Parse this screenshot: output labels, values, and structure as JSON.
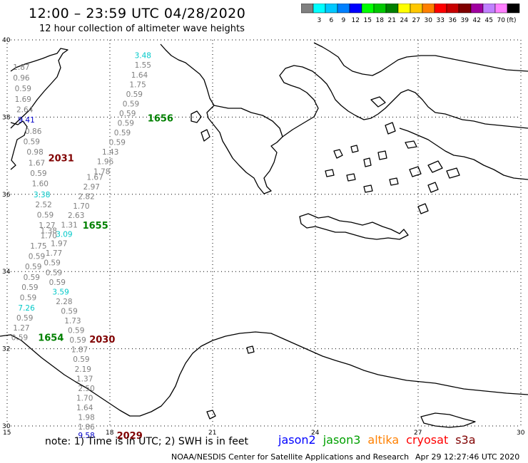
{
  "title": "12:00 – 23:59 UTC 04/28/2020",
  "subtitle": "12 hour collection of altimeter wave heights",
  "legend": {
    "unit_label": "(ft)",
    "bins": [
      {
        "label": "",
        "color": "#808080"
      },
      {
        "label": "3",
        "color": "#00ffff"
      },
      {
        "label": "6",
        "color": "#00c8ff"
      },
      {
        "label": "9",
        "color": "#0080ff"
      },
      {
        "label": "12",
        "color": "#0000ff"
      },
      {
        "label": "15",
        "color": "#00ff00"
      },
      {
        "label": "18",
        "color": "#00c800"
      },
      {
        "label": "21",
        "color": "#008000"
      },
      {
        "label": "24",
        "color": "#ffff00"
      },
      {
        "label": "27",
        "color": "#ffc800"
      },
      {
        "label": "30",
        "color": "#ff8000"
      },
      {
        "label": "33",
        "color": "#ff0000"
      },
      {
        "label": "36",
        "color": "#c80000"
      },
      {
        "label": "39",
        "color": "#800000"
      },
      {
        "label": "42",
        "color": "#a000a0"
      },
      {
        "label": "45",
        "color": "#c080ff"
      },
      {
        "label": "70",
        "color": "#ff80ff"
      },
      {
        "label": "",
        "color": "#000000"
      }
    ]
  },
  "lat_labels": [
    {
      "value": 40,
      "label": "40"
    },
    {
      "value": 38,
      "label": "38"
    },
    {
      "value": 36,
      "label": "36"
    },
    {
      "value": 34,
      "label": "34"
    },
    {
      "value": 32,
      "label": "32"
    },
    {
      "value": 30,
      "label": "30"
    }
  ],
  "lon_labels": [
    {
      "value": 15,
      "label": "15"
    },
    {
      "value": 18,
      "label": "18"
    },
    {
      "value": 21,
      "label": "21"
    },
    {
      "value": 24,
      "label": "24"
    },
    {
      "value": 27,
      "label": "27"
    },
    {
      "value": 30,
      "label": "30"
    }
  ],
  "measurements": [
    {
      "lon": 15.4,
      "lat": 39.3,
      "text": "1.87",
      "color": "#808080"
    },
    {
      "lon": 15.4,
      "lat": 39.02,
      "text": "0.96",
      "color": "#808080"
    },
    {
      "lon": 15.45,
      "lat": 38.75,
      "text": "0.59",
      "color": "#808080"
    },
    {
      "lon": 15.45,
      "lat": 38.47,
      "text": "1.69",
      "color": "#808080"
    },
    {
      "lon": 15.5,
      "lat": 38.2,
      "text": "2.64",
      "color": "#808080"
    },
    {
      "lon": 15.55,
      "lat": 37.93,
      "text": "9.41",
      "color": "#0000c8"
    },
    {
      "lon": 15.75,
      "lat": 37.64,
      "text": "0.86",
      "color": "#808080"
    },
    {
      "lon": 15.7,
      "lat": 37.37,
      "text": "0.59",
      "color": "#808080"
    },
    {
      "lon": 15.8,
      "lat": 37.1,
      "text": "0.98",
      "color": "#808080"
    },
    {
      "lon": 15.85,
      "lat": 36.82,
      "text": "1.67",
      "color": "#808080"
    },
    {
      "lon": 15.9,
      "lat": 36.55,
      "text": "0.59",
      "color": "#808080"
    },
    {
      "lon": 15.95,
      "lat": 36.28,
      "text": "1.60",
      "color": "#808080"
    },
    {
      "lon": 16.0,
      "lat": 36.0,
      "text": "3.38",
      "color": "#00c8c8"
    },
    {
      "lon": 16.05,
      "lat": 35.74,
      "text": "2.52",
      "color": "#808080"
    },
    {
      "lon": 16.1,
      "lat": 35.47,
      "text": "0.59",
      "color": "#808080"
    },
    {
      "lon": 16.15,
      "lat": 35.2,
      "text": "1.27",
      "color": "#808080"
    },
    {
      "lon": 16.2,
      "lat": 35.06,
      "text": "1.38",
      "color": "#808080"
    },
    {
      "lon": 16.2,
      "lat": 34.94,
      "text": "1.70",
      "color": "#808080"
    },
    {
      "lon": 15.9,
      "lat": 34.67,
      "text": "1.75",
      "color": "#808080"
    },
    {
      "lon": 15.85,
      "lat": 34.4,
      "text": "0.59",
      "color": "#808080"
    },
    {
      "lon": 15.75,
      "lat": 34.13,
      "text": "0.59",
      "color": "#808080"
    },
    {
      "lon": 15.7,
      "lat": 33.86,
      "text": "0.59",
      "color": "#808080"
    },
    {
      "lon": 15.65,
      "lat": 33.6,
      "text": "0.59",
      "color": "#808080"
    },
    {
      "lon": 15.6,
      "lat": 33.33,
      "text": "0.59",
      "color": "#808080"
    },
    {
      "lon": 15.55,
      "lat": 33.06,
      "text": "7.26",
      "color": "#00c8c8"
    },
    {
      "lon": 15.5,
      "lat": 32.8,
      "text": "0.59",
      "color": "#808080"
    },
    {
      "lon": 15.4,
      "lat": 32.55,
      "text": "1.27",
      "color": "#808080"
    },
    {
      "lon": 15.35,
      "lat": 32.3,
      "text": "0.59",
      "color": "#808080"
    },
    {
      "lon": 18.95,
      "lat": 39.6,
      "text": "3.48",
      "color": "#00c8c8"
    },
    {
      "lon": 18.95,
      "lat": 39.35,
      "text": "1.55",
      "color": "#808080"
    },
    {
      "lon": 18.85,
      "lat": 39.1,
      "text": "1.64",
      "color": "#808080"
    },
    {
      "lon": 18.8,
      "lat": 38.85,
      "text": "1.75",
      "color": "#808080"
    },
    {
      "lon": 18.7,
      "lat": 38.6,
      "text": "0.59",
      "color": "#808080"
    },
    {
      "lon": 18.6,
      "lat": 38.35,
      "text": "0.59",
      "color": "#808080"
    },
    {
      "lon": 18.5,
      "lat": 38.1,
      "text": "0.59",
      "color": "#808080"
    },
    {
      "lon": 18.45,
      "lat": 37.85,
      "text": "0.59",
      "color": "#808080"
    },
    {
      "lon": 18.35,
      "lat": 37.6,
      "text": "0.59",
      "color": "#808080"
    },
    {
      "lon": 18.2,
      "lat": 37.35,
      "text": "0.59",
      "color": "#808080"
    },
    {
      "lon": 18.0,
      "lat": 37.1,
      "text": "1.43",
      "color": "#808080"
    },
    {
      "lon": 17.85,
      "lat": 36.85,
      "text": "1.96",
      "color": "#808080"
    },
    {
      "lon": 17.75,
      "lat": 36.6,
      "text": "1.78",
      "color": "#808080"
    },
    {
      "lon": 17.55,
      "lat": 36.45,
      "text": "1.67",
      "color": "#808080"
    },
    {
      "lon": 17.45,
      "lat": 36.2,
      "text": "2.97",
      "color": "#808080"
    },
    {
      "lon": 17.3,
      "lat": 35.95,
      "text": "2.82",
      "color": "#808080"
    },
    {
      "lon": 17.15,
      "lat": 35.7,
      "text": "1.70",
      "color": "#808080"
    },
    {
      "lon": 17.0,
      "lat": 35.46,
      "text": "2.63",
      "color": "#808080"
    },
    {
      "lon": 16.8,
      "lat": 35.21,
      "text": "1.31",
      "color": "#808080"
    },
    {
      "lon": 16.65,
      "lat": 34.97,
      "text": "3.09",
      "color": "#00c8c8"
    },
    {
      "lon": 16.5,
      "lat": 34.73,
      "text": "1.97",
      "color": "#808080"
    },
    {
      "lon": 16.35,
      "lat": 34.48,
      "text": "1.77",
      "color": "#808080"
    },
    {
      "lon": 16.3,
      "lat": 34.23,
      "text": "0.59",
      "color": "#808080"
    },
    {
      "lon": 16.35,
      "lat": 33.98,
      "text": "0.59",
      "color": "#808080"
    },
    {
      "lon": 16.45,
      "lat": 33.73,
      "text": "0.59",
      "color": "#808080"
    },
    {
      "lon": 16.55,
      "lat": 33.48,
      "text": "3.59",
      "color": "#00c8c8"
    },
    {
      "lon": 16.65,
      "lat": 33.23,
      "text": "2.28",
      "color": "#808080"
    },
    {
      "lon": 16.8,
      "lat": 32.98,
      "text": "0.59",
      "color": "#808080"
    },
    {
      "lon": 16.9,
      "lat": 32.73,
      "text": "1.73",
      "color": "#808080"
    },
    {
      "lon": 17.0,
      "lat": 32.48,
      "text": "0.59",
      "color": "#808080"
    },
    {
      "lon": 17.05,
      "lat": 32.23,
      "text": "0.59",
      "color": "#808080"
    },
    {
      "lon": 17.1,
      "lat": 31.98,
      "text": "1.87",
      "color": "#808080"
    },
    {
      "lon": 17.15,
      "lat": 31.73,
      "text": "0.59",
      "color": "#808080"
    },
    {
      "lon": 17.2,
      "lat": 31.48,
      "text": "2.19",
      "color": "#808080"
    },
    {
      "lon": 17.25,
      "lat": 31.23,
      "text": "1.37",
      "color": "#808080"
    },
    {
      "lon": 17.3,
      "lat": 30.98,
      "text": "2.50",
      "color": "#808080"
    },
    {
      "lon": 17.25,
      "lat": 30.73,
      "text": "1.70",
      "color": "#808080"
    },
    {
      "lon": 17.25,
      "lat": 30.48,
      "text": "1.64",
      "color": "#808080"
    },
    {
      "lon": 17.3,
      "lat": 30.23,
      "text": "1.98",
      "color": "#808080"
    },
    {
      "lon": 17.3,
      "lat": 29.98,
      "text": "1.86",
      "color": "#808080"
    },
    {
      "lon": 17.3,
      "lat": 29.76,
      "text": "9.58",
      "color": "#0000c8"
    }
  ],
  "pass_times": [
    {
      "lon": 19.35,
      "lat": 37.98,
      "text": "1656",
      "color": "#008000"
    },
    {
      "lon": 16.45,
      "lat": 36.95,
      "text": "2031",
      "color": "#800000"
    },
    {
      "lon": 17.45,
      "lat": 35.2,
      "text": "1655",
      "color": "#008000"
    },
    {
      "lon": 16.15,
      "lat": 32.3,
      "text": "1654",
      "color": "#008000"
    },
    {
      "lon": 17.65,
      "lat": 32.25,
      "text": "2030",
      "color": "#800000"
    },
    {
      "lon": 18.45,
      "lat": 29.76,
      "text": "2029",
      "color": "#800000"
    }
  ],
  "note": "note:  1) Time is in UTC;  2) SWH is in feet",
  "satellites": [
    {
      "name": "jason2",
      "color": "#0000ff"
    },
    {
      "name": "jason3",
      "color": "#00a000"
    },
    {
      "name": "altika",
      "color": "#ff8000"
    },
    {
      "name": "cryosat",
      "color": "#ff0000"
    },
    {
      "name": "s3a",
      "color": "#800000"
    }
  ],
  "footer_source": "NOAA/NESDIS Center for Satellite Applications and Research",
  "footer_time": "Apr 29 12:27:46 UTC 2020"
}
